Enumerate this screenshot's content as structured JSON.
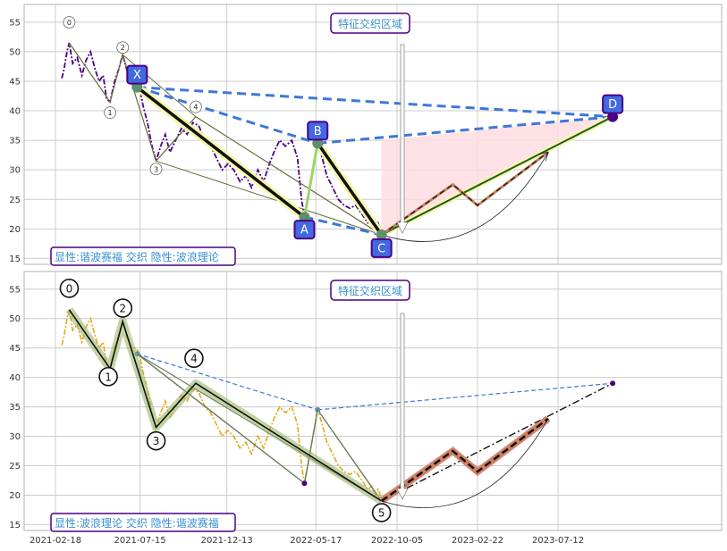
{
  "chart_data": [
    {
      "type": "line",
      "panel": "top",
      "ylim": [
        14,
        58
      ],
      "yticks": [
        15,
        20,
        25,
        30,
        35,
        40,
        45,
        50,
        55
      ],
      "grid": true,
      "colors": {
        "price": "#4b0082",
        "pattern_dash": "#3c78d8",
        "zone": "#ffdde1",
        "label_box": "#4169e1",
        "label_border": "#4b0082"
      },
      "price_series": [
        [
          "2021-03-01",
          45.5
        ],
        [
          "2021-03-05",
          47
        ],
        [
          "2021-03-10",
          50
        ],
        [
          "2021-03-14",
          51.5
        ],
        [
          "2021-03-20",
          48
        ],
        [
          "2021-03-28",
          49
        ],
        [
          "2021-04-05",
          46
        ],
        [
          "2021-04-12",
          48.5
        ],
        [
          "2021-04-20",
          50
        ],
        [
          "2021-04-28",
          47
        ],
        [
          "2021-05-05",
          45
        ],
        [
          "2021-05-12",
          46
        ],
        [
          "2021-05-18",
          42
        ],
        [
          "2021-05-24",
          41.5
        ],
        [
          "2021-06-01",
          45
        ],
        [
          "2021-06-08",
          47
        ],
        [
          "2021-06-15",
          49.5
        ],
        [
          "2021-06-22",
          47
        ],
        [
          "2021-06-30",
          45
        ],
        [
          "2021-07-08",
          45
        ],
        [
          "2021-07-14",
          44
        ],
        [
          "2021-07-20",
          41
        ],
        [
          "2021-07-28",
          38
        ],
        [
          "2021-08-05",
          34
        ],
        [
          "2021-08-12",
          31.5
        ],
        [
          "2021-08-20",
          34
        ],
        [
          "2021-08-28",
          36
        ],
        [
          "2021-09-05",
          33
        ],
        [
          "2021-09-15",
          35
        ],
        [
          "2021-09-25",
          37
        ],
        [
          "2021-10-05",
          36
        ],
        [
          "2021-10-15",
          38
        ],
        [
          "2021-10-25",
          37.5
        ],
        [
          "2021-11-05",
          35
        ],
        [
          "2021-11-15",
          34
        ],
        [
          "2021-11-25",
          32
        ],
        [
          "2021-12-05",
          30
        ],
        [
          "2021-12-15",
          31
        ],
        [
          "2021-12-25",
          30
        ],
        [
          "2022-01-05",
          28
        ],
        [
          "2022-01-15",
          29
        ],
        [
          "2022-01-25",
          27
        ],
        [
          "2022-02-05",
          30
        ],
        [
          "2022-02-15",
          28
        ],
        [
          "2022-02-25",
          31
        ],
        [
          "2022-03-05",
          33
        ],
        [
          "2022-03-15",
          35
        ],
        [
          "2022-03-25",
          34
        ],
        [
          "2022-04-05",
          35
        ],
        [
          "2022-04-15",
          32
        ],
        [
          "2022-04-22",
          25
        ],
        [
          "2022-04-27",
          22
        ],
        [
          "2022-05-03",
          25
        ],
        [
          "2022-05-10",
          29
        ],
        [
          "2022-05-17",
          33
        ],
        [
          "2022-05-20",
          34.5
        ],
        [
          "2022-05-28",
          32
        ],
        [
          "2022-06-05",
          29
        ],
        [
          "2022-06-15",
          27
        ],
        [
          "2022-06-25",
          25
        ],
        [
          "2022-07-05",
          24
        ],
        [
          "2022-07-15",
          23.5
        ],
        [
          "2022-07-25",
          24
        ],
        [
          "2022-08-05",
          22.5
        ],
        [
          "2022-08-15",
          21
        ],
        [
          "2022-08-22",
          21.5
        ],
        [
          "2022-08-28",
          20
        ],
        [
          "2022-09-02",
          21
        ],
        [
          "2022-09-08",
          19.5
        ]
      ],
      "harmonic": {
        "points": [
          {
            "label": "X",
            "date": "2021-07-10",
            "value": 44
          },
          {
            "label": "A",
            "date": "2022-04-27",
            "value": 22
          },
          {
            "label": "B",
            "date": "2022-05-20",
            "value": 34.5
          },
          {
            "label": "C",
            "date": "2022-09-08",
            "value": 19
          },
          {
            "label": "D",
            "date": "2023-10-15",
            "value": 39
          }
        ]
      },
      "wave_points": [
        {
          "label": "0",
          "date": "2021-03-14",
          "value": 51.5
        },
        {
          "label": "1",
          "date": "2021-05-24",
          "value": 41.5
        },
        {
          "label": "2",
          "date": "2021-06-15",
          "value": 49.5
        },
        {
          "label": "3",
          "date": "2021-08-12",
          "value": 31.5
        },
        {
          "label": "4",
          "date": "2021-10-20",
          "value": 39
        },
        {
          "label": "5",
          "date": "2022-09-08",
          "value": 19
        }
      ],
      "projection": [
        [
          "2022-09-08",
          19
        ],
        [
          "2023-01-10",
          27.5
        ],
        [
          "2023-02-22",
          24
        ],
        [
          "2023-06-25",
          33
        ]
      ]
    },
    {
      "type": "line",
      "panel": "bottom",
      "ylim": [
        14,
        58
      ],
      "yticks": [
        15,
        20,
        25,
        30,
        35,
        40,
        45,
        50,
        55
      ],
      "xtick_labels": [
        "2021-02-18",
        "2021-07-15",
        "2021-12-13",
        "2022-05-17",
        "2022-10-05",
        "2023-02-22",
        "2023-07-12"
      ],
      "grid": true,
      "colors": {
        "price": "#e6a817",
        "wave_fill": "#9bb56a",
        "harmonic_dash": "#3c78d8",
        "projection_fill": "#e07070",
        "projection_brown": "#c8825a"
      }
    }
  ],
  "annotations": {
    "top_zone_label": "特征交织区域",
    "top_footer_label": "显性:谐波赛福 交织 隐性:波浪理论",
    "bottom_zone_label": "特征交织区域",
    "bottom_footer_label": "显性:波浪理论 交织 隐性:谐波赛福"
  }
}
